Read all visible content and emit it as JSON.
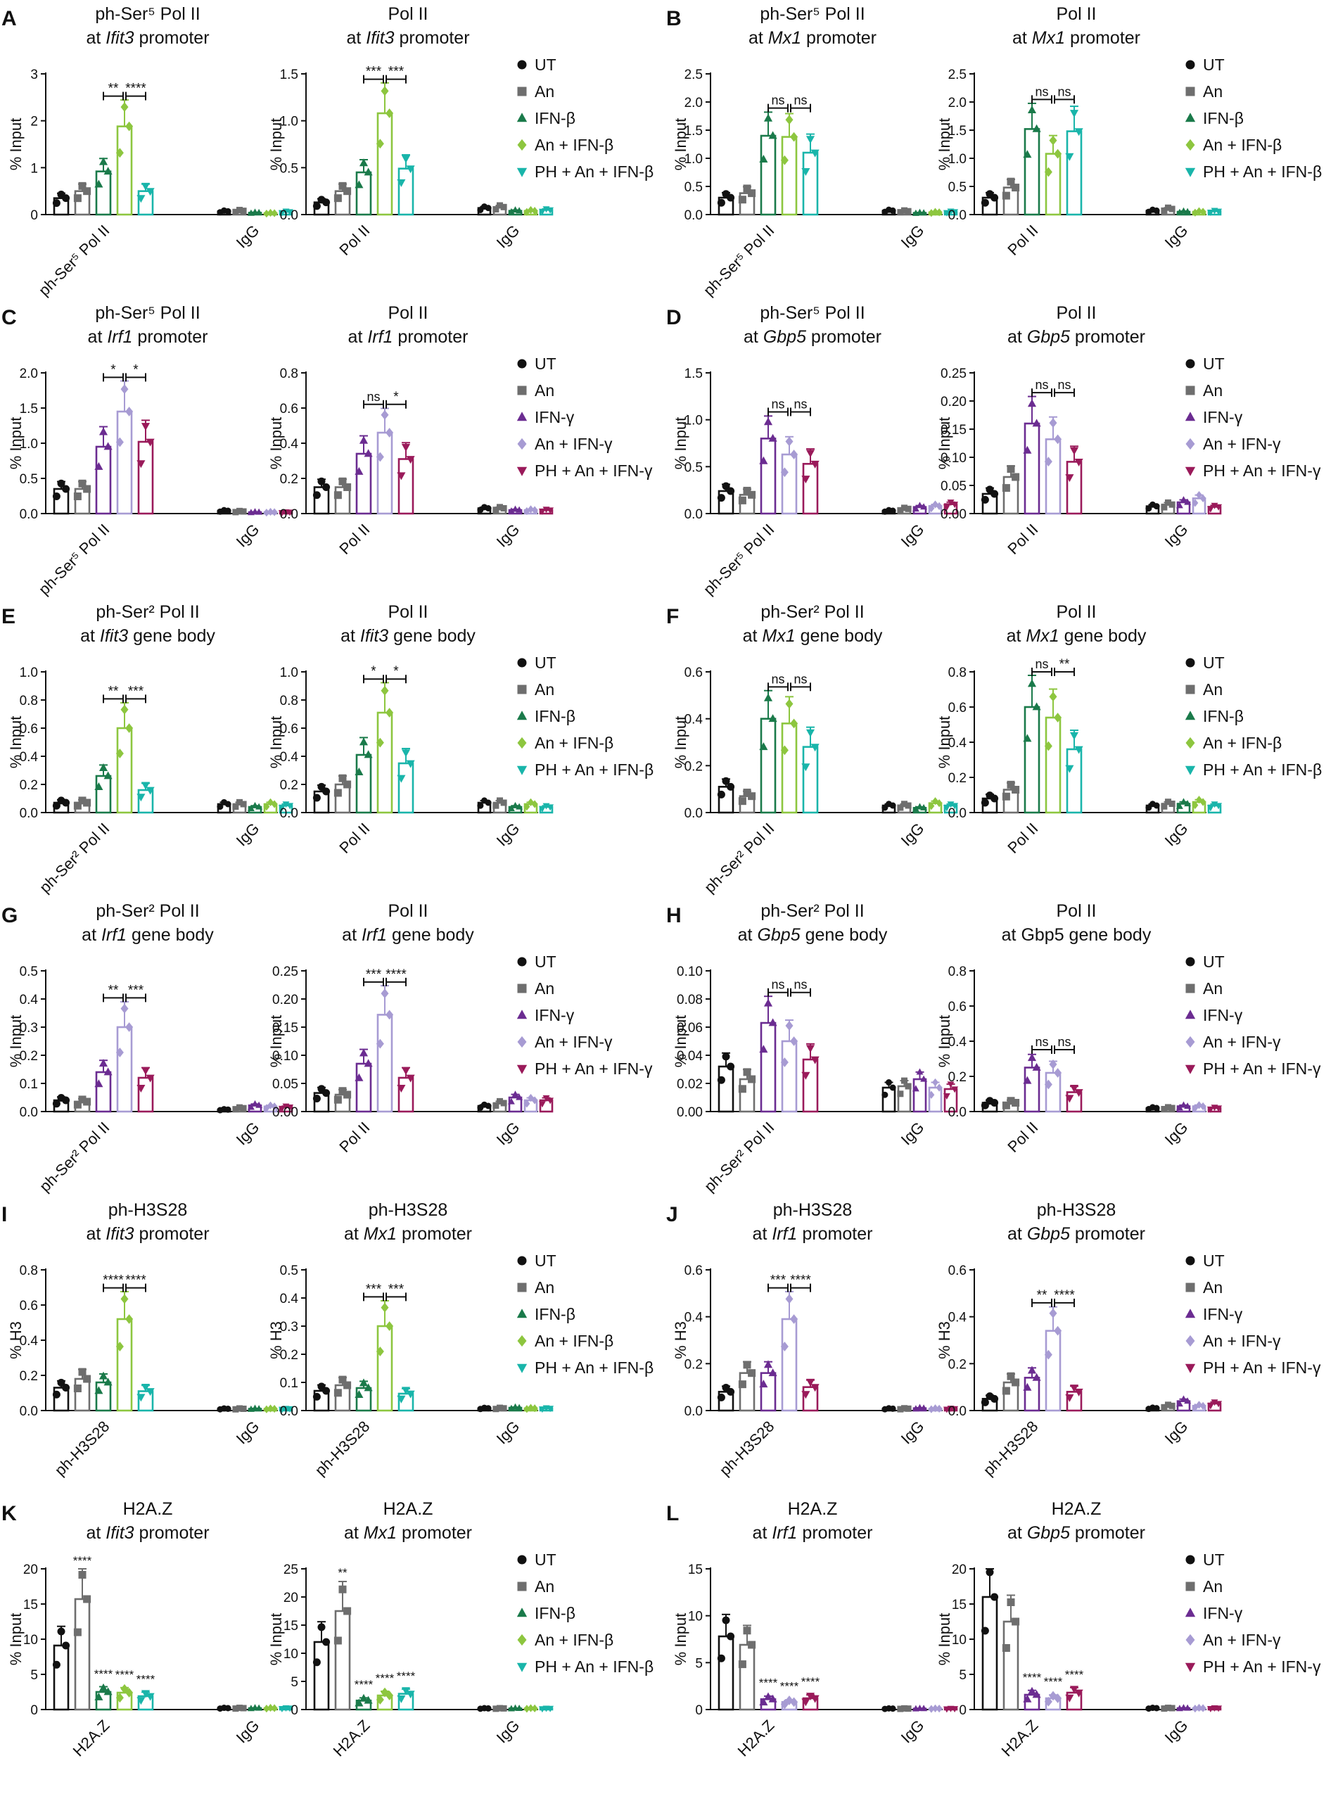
{
  "groups": {
    "beta": [
      "UT",
      "An",
      "IFN-β",
      "An + IFN-β",
      "PH + An + IFN-β"
    ],
    "gamma": [
      "UT",
      "An",
      "IFN-γ",
      "An + IFN-γ",
      "PH + An + IFN-γ"
    ]
  },
  "colors": {
    "beta": [
      "#111111",
      "#6e6e6e",
      "#1a7a4a",
      "#8dc63f",
      "#19b5aa"
    ],
    "gamma": [
      "#111111",
      "#6e6e6e",
      "#6b2c91",
      "#a79bd3",
      "#9a1a5a"
    ]
  },
  "markers": [
    "circle",
    "square",
    "triangle-up",
    "diamond",
    "triangle-down"
  ],
  "chart_data": [
    {
      "id": "A1",
      "panel": "A",
      "type": "bar",
      "title1": "ph-Ser⁵ Pol II",
      "title2a": "at ",
      "title2i": "Ifit3",
      "title2b": " promoter",
      "ylabel": "% Input",
      "ylim": [
        0,
        3
      ],
      "ticks": [
        "0",
        "1",
        "2",
        "3"
      ],
      "categories": [
        "ph-Ser⁵ Pol II",
        "IgG"
      ],
      "set": "beta",
      "values": [
        [
          0.35,
          0.5,
          0.92,
          1.88,
          0.5
        ],
        [
          0.07,
          0.08,
          0.04,
          0.03,
          0.06
        ]
      ],
      "sig": [
        "**",
        "****"
      ]
    },
    {
      "id": "A2",
      "panel": "",
      "type": "bar",
      "title1": "Pol II",
      "title2a": "at ",
      "title2i": "Ifit3",
      "title2b": " promoter",
      "ylabel": "% Input",
      "ylim": [
        0,
        1.5
      ],
      "ticks": [
        "0.0",
        "0.5",
        "1.0",
        "1.5"
      ],
      "categories": [
        "Pol II",
        "IgG"
      ],
      "set": "beta",
      "values": [
        [
          0.13,
          0.25,
          0.45,
          1.08,
          0.49
        ],
        [
          0.07,
          0.08,
          0.04,
          0.04,
          0.05
        ]
      ],
      "sig": [
        "***",
        "***"
      ]
    },
    {
      "id": "B1",
      "panel": "B",
      "type": "bar",
      "title1": "ph-Ser⁵ Pol II",
      "title2a": "at ",
      "title2i": "Mx1",
      "title2b": " promoter",
      "ylabel": "% Input",
      "ylim": [
        0,
        2.5
      ],
      "ticks": [
        "0.0",
        "0.5",
        "1.0",
        "1.5",
        "2.0",
        "2.5"
      ],
      "categories": [
        "ph-Ser⁵ Pol II",
        "IgG"
      ],
      "set": "beta",
      "values": [
        [
          0.3,
          0.38,
          1.4,
          1.38,
          1.1
        ],
        [
          0.07,
          0.06,
          0.03,
          0.04,
          0.05
        ]
      ],
      "sig": [
        "ns",
        "ns"
      ]
    },
    {
      "id": "B2",
      "panel": "",
      "type": "bar",
      "title1": "Pol II",
      "title2a": "at ",
      "title2i": "Mx1",
      "title2b": " promoter",
      "ylabel": "% Input",
      "ylim": [
        0,
        2.5
      ],
      "ticks": [
        "0.0",
        "0.5",
        "1.0",
        "1.5",
        "2.0",
        "2.5"
      ],
      "categories": [
        "Pol II",
        "IgG"
      ],
      "set": "beta",
      "values": [
        [
          0.3,
          0.48,
          1.52,
          1.08,
          1.48
        ],
        [
          0.07,
          0.1,
          0.05,
          0.05,
          0.06
        ]
      ],
      "sig": [
        "ns",
        "ns"
      ]
    },
    {
      "id": "C1",
      "panel": "C",
      "type": "bar",
      "title1": "ph-Ser⁵ Pol II",
      "title2a": "at ",
      "title2i": "Irf1",
      "title2b": " promoter",
      "ylabel": "% Input",
      "ylim": [
        0,
        2
      ],
      "ticks": [
        "0.0",
        "0.5",
        "1.0",
        "1.5",
        "2.0"
      ],
      "categories": [
        "ph-Ser⁵ Pol II",
        "IgG"
      ],
      "set": "gamma",
      "values": [
        [
          0.35,
          0.35,
          0.95,
          1.45,
          1.02
        ],
        [
          0.04,
          0.03,
          0.02,
          0.02,
          0.02
        ]
      ],
      "sig": [
        "*",
        "*"
      ]
    },
    {
      "id": "C2",
      "panel": "",
      "type": "bar",
      "title1": "Pol II",
      "title2a": "at ",
      "title2i": "Irf1",
      "title2b": " promoter",
      "ylabel": "% Input",
      "ylim": [
        0,
        0.8
      ],
      "ticks": [
        "0.0",
        "0.2",
        "0.4",
        "0.6",
        "0.8"
      ],
      "categories": [
        "Pol II",
        "IgG"
      ],
      "set": "gamma",
      "values": [
        [
          0.15,
          0.15,
          0.34,
          0.46,
          0.31
        ],
        [
          0.03,
          0.03,
          0.02,
          0.02,
          0.02
        ]
      ],
      "sig": [
        "ns",
        "*"
      ]
    },
    {
      "id": "D1",
      "panel": "D",
      "type": "bar",
      "title1": "ph-Ser⁵ Pol II",
      "title2a": "at ",
      "title2i": "Gbp5",
      "title2b": " promoter",
      "ylabel": "% Input",
      "ylim": [
        0,
        1.5
      ],
      "ticks": [
        "0.0",
        "0.5",
        "1.0",
        "1.5"
      ],
      "categories": [
        "ph-Ser⁵ Pol II",
        "IgG"
      ],
      "set": "gamma",
      "values": [
        [
          0.24,
          0.2,
          0.8,
          0.63,
          0.53
        ],
        [
          0.03,
          0.05,
          0.07,
          0.08,
          0.1
        ]
      ],
      "sig": [
        "ns",
        "ns"
      ]
    },
    {
      "id": "D2",
      "panel": "",
      "type": "bar",
      "title1": "Pol II",
      "title2a": "at ",
      "title2i": "Gbp5",
      "title2b": " promoter",
      "ylabel": "% Input",
      "ylim": [
        0,
        0.25
      ],
      "ticks": [
        "0.00",
        "0.05",
        "0.10",
        "0.15",
        "0.20",
        "0.25"
      ],
      "categories": [
        "Pol II",
        "IgG"
      ],
      "set": "gamma",
      "values": [
        [
          0.035,
          0.065,
          0.16,
          0.132,
          0.092
        ],
        [
          0.013,
          0.016,
          0.02,
          0.027,
          0.012
        ]
      ],
      "sig": [
        "ns",
        "ns"
      ]
    },
    {
      "id": "E1",
      "panel": "E",
      "type": "bar",
      "title1": "ph-Ser² Pol II",
      "title2a": "at ",
      "title2i": "Ifit3",
      "title2b": " gene body",
      "ylabel": "% Input",
      "ylim": [
        0,
        1
      ],
      "ticks": [
        "0.0",
        "0.2",
        "0.4",
        "0.6",
        "0.8",
        "1.0"
      ],
      "categories": [
        "ph-Ser² Pol II",
        "IgG"
      ],
      "set": "beta",
      "values": [
        [
          0.07,
          0.07,
          0.26,
          0.6,
          0.16
        ],
        [
          0.06,
          0.06,
          0.04,
          0.06,
          0.05
        ]
      ],
      "sig": [
        "**",
        "***"
      ]
    },
    {
      "id": "E2",
      "panel": "",
      "type": "bar",
      "title1": "Pol II",
      "title2a": "at ",
      "title2i": "Ifit3",
      "title2b": " gene body",
      "ylabel": "% Input",
      "ylim": [
        0,
        1
      ],
      "ticks": [
        "0.0",
        "0.2",
        "0.4",
        "0.6",
        "0.8",
        "1.0"
      ],
      "categories": [
        "Pol II",
        "IgG"
      ],
      "set": "beta",
      "values": [
        [
          0.15,
          0.2,
          0.41,
          0.71,
          0.35
        ],
        [
          0.07,
          0.07,
          0.04,
          0.06,
          0.04
        ]
      ],
      "sig": [
        "*",
        "*"
      ]
    },
    {
      "id": "F1",
      "panel": "F",
      "type": "bar",
      "title1": "ph-Ser² Pol II",
      "title2a": "at ",
      "title2i": "Mx1",
      "title2b": " gene body",
      "ylabel": "% Input",
      "ylim": [
        0,
        0.6
      ],
      "ticks": [
        "0.0",
        "0.2",
        "0.4",
        "0.6"
      ],
      "categories": [
        "ph-Ser² Pol II",
        "IgG"
      ],
      "set": "beta",
      "values": [
        [
          0.11,
          0.07,
          0.4,
          0.38,
          0.28
        ],
        [
          0.03,
          0.03,
          0.02,
          0.04,
          0.03
        ]
      ],
      "sig": [
        "ns",
        "ns"
      ]
    },
    {
      "id": "F2",
      "panel": "",
      "type": "bar",
      "title1": "Pol II",
      "title2a": "at ",
      "title2i": "Mx1",
      "title2b": " gene body",
      "ylabel": "% Input",
      "ylim": [
        0,
        0.8
      ],
      "ticks": [
        "0.0",
        "0.2",
        "0.4",
        "0.6",
        "0.8"
      ],
      "categories": [
        "Pol II",
        "IgG"
      ],
      "set": "beta",
      "values": [
        [
          0.08,
          0.13,
          0.6,
          0.54,
          0.36
        ],
        [
          0.04,
          0.05,
          0.05,
          0.06,
          0.04
        ]
      ],
      "sig": [
        "ns",
        "**"
      ]
    },
    {
      "id": "G1",
      "panel": "G",
      "type": "bar",
      "title1": "ph-Ser² Pol II",
      "title2a": "at ",
      "title2i": "Irf1",
      "title2b": " gene body",
      "ylabel": "% Input",
      "ylim": [
        0,
        0.5
      ],
      "ticks": [
        "0.0",
        "0.1",
        "0.2",
        "0.3",
        "0.4",
        "0.5"
      ],
      "categories": [
        "ph-Ser² Pol II",
        "IgG"
      ],
      "set": "gamma",
      "values": [
        [
          0.04,
          0.035,
          0.14,
          0.3,
          0.12
        ],
        [
          0.007,
          0.012,
          0.022,
          0.018,
          0.016
        ]
      ],
      "sig": [
        "**",
        "***"
      ]
    },
    {
      "id": "G2",
      "panel": "",
      "type": "bar",
      "title1": "Pol II",
      "title2a": "at ",
      "title2i": "Irf1",
      "title2b": " gene body",
      "ylabel": "% Input",
      "ylim": [
        0,
        0.25
      ],
      "ticks": [
        "0.00",
        "0.05",
        "0.10",
        "0.15",
        "0.20",
        "0.25"
      ],
      "categories": [
        "Pol II",
        "IgG"
      ],
      "set": "gamma",
      "values": [
        [
          0.033,
          0.03,
          0.085,
          0.172,
          0.06
        ],
        [
          0.01,
          0.015,
          0.025,
          0.02,
          0.02
        ]
      ],
      "sig": [
        "***",
        "****"
      ]
    },
    {
      "id": "H1",
      "panel": "H",
      "type": "bar",
      "title1": "ph-Ser² Pol II",
      "title2a": "at ",
      "title2i": "Gbp5",
      "title2b": " gene body",
      "ylabel": "% Input",
      "ylim": [
        0,
        0.1
      ],
      "ticks": [
        "0.00",
        "0.02",
        "0.04",
        "0.06",
        "0.08",
        "0.10"
      ],
      "categories": [
        "ph-Ser² Pol II",
        "IgG"
      ],
      "set": "gamma",
      "values": [
        [
          0.032,
          0.023,
          0.063,
          0.05,
          0.037
        ],
        [
          0.017,
          0.018,
          0.023,
          0.017,
          0.016
        ]
      ],
      "sig": [
        "ns",
        "ns"
      ]
    },
    {
      "id": "H2",
      "panel": "",
      "type": "bar",
      "title1": "Pol II",
      "title2a": "at Gbp5 gene body",
      "title2i": "",
      "title2b": "",
      "ylabel": "% Input",
      "ylim": [
        0,
        0.8
      ],
      "ticks": [
        "0.0",
        "0.2",
        "0.4",
        "0.6",
        "0.8"
      ],
      "categories": [
        "Pol II",
        "IgG"
      ],
      "set": "gamma",
      "values": [
        [
          0.05,
          0.05,
          0.25,
          0.22,
          0.11
        ],
        [
          0.02,
          0.02,
          0.03,
          0.03,
          0.02
        ]
      ],
      "sig": [
        "ns",
        "ns"
      ]
    },
    {
      "id": "I1",
      "panel": "I",
      "type": "bar",
      "title1": "ph-H3S28",
      "title2a": "at ",
      "title2i": "Ifit3",
      "title2b": " promoter",
      "ylabel": "% H3",
      "ylim": [
        0,
        0.8
      ],
      "ticks": [
        "0.0",
        "0.2",
        "0.4",
        "0.6",
        "0.8"
      ],
      "categories": [
        "ph-H3S28",
        "IgG"
      ],
      "set": "beta",
      "values": [
        [
          0.13,
          0.18,
          0.16,
          0.52,
          0.11
        ],
        [
          0.01,
          0.01,
          0.01,
          0.01,
          0.01
        ]
      ],
      "sig": [
        "****",
        "****"
      ]
    },
    {
      "id": "I2",
      "panel": "",
      "type": "bar",
      "title1": "ph-H3S28",
      "title2a": "at ",
      "title2i": "Mx1",
      "title2b": " promoter",
      "ylabel": "% H3",
      "ylim": [
        0,
        0.5
      ],
      "ticks": [
        "0.0",
        "0.1",
        "0.2",
        "0.3",
        "0.4",
        "0.5"
      ],
      "categories": [
        "ph-H3S28",
        "IgG"
      ],
      "set": "beta",
      "values": [
        [
          0.07,
          0.09,
          0.08,
          0.3,
          0.06
        ],
        [
          0.008,
          0.008,
          0.01,
          0.008,
          0.008
        ]
      ],
      "sig": [
        "***",
        "***"
      ]
    },
    {
      "id": "J1",
      "panel": "J",
      "type": "bar",
      "title1": "ph-H3S28",
      "title2a": "at ",
      "title2i": "Irf1",
      "title2b": " promoter",
      "ylabel": "% H3",
      "ylim": [
        0,
        0.6
      ],
      "ticks": [
        "0.0",
        "0.2",
        "0.4",
        "0.6"
      ],
      "categories": [
        "ph-H3S28",
        "IgG"
      ],
      "set": "gamma",
      "values": [
        [
          0.08,
          0.16,
          0.16,
          0.39,
          0.1
        ],
        [
          0.008,
          0.008,
          0.01,
          0.008,
          0.008
        ]
      ],
      "sig": [
        "***",
        "****"
      ]
    },
    {
      "id": "J2",
      "panel": "",
      "type": "bar",
      "title1": "ph-H3S28",
      "title2a": "at ",
      "title2i": "Gbp5",
      "title2b": " promoter",
      "ylabel": "% H3",
      "ylim": [
        0,
        0.6
      ],
      "ticks": [
        "0.0",
        "0.2",
        "0.4",
        "0.6"
      ],
      "categories": [
        "ph-H3S28",
        "IgG"
      ],
      "set": "gamma",
      "values": [
        [
          0.05,
          0.12,
          0.14,
          0.34,
          0.08
        ],
        [
          0.01,
          0.02,
          0.04,
          0.02,
          0.03
        ]
      ],
      "sig": [
        "**",
        "****"
      ]
    },
    {
      "id": "K1",
      "panel": "K",
      "type": "bar",
      "title1": "H2A.Z",
      "title2a": "at ",
      "title2i": "Ifit3",
      "title2b": " promoter",
      "ylabel": "% Input",
      "ylim": [
        0,
        20
      ],
      "ticks": [
        "0",
        "5",
        "10",
        "15",
        "20"
      ],
      "categories": [
        "H2A.Z",
        "IgG"
      ],
      "set": "beta",
      "values": [
        [
          9.1,
          15.7,
          2.5,
          2.4,
          1.9
        ],
        [
          0.2,
          0.2,
          0.2,
          0.2,
          0.2
        ]
      ],
      "sig": [
        "****",
        "****",
        "****",
        "****"
      ]
    },
    {
      "id": "K2",
      "panel": "",
      "type": "bar",
      "title1": "H2A.Z",
      "title2a": "at ",
      "title2i": "Mx1",
      "title2b": " promoter",
      "ylabel": "% Input",
      "ylim": [
        0,
        25
      ],
      "ticks": [
        "0",
        "5",
        "10",
        "15",
        "20",
        "25"
      ],
      "categories": [
        "H2A.Z",
        "IgG"
      ],
      "set": "beta",
      "values": [
        [
          12,
          17.5,
          1.6,
          2.5,
          2.8
        ],
        [
          0.2,
          0.2,
          0.2,
          0.2,
          0.2
        ]
      ],
      "sig": [
        "**",
        "****",
        "****",
        "****"
      ]
    },
    {
      "id": "L1",
      "panel": "L",
      "type": "bar",
      "title1": "H2A.Z",
      "title2a": "at ",
      "title2i": "Irf1",
      "title2b": " promoter",
      "ylabel": "% Input",
      "ylim": [
        0,
        15
      ],
      "ticks": [
        "0",
        "5",
        "10",
        "15"
      ],
      "categories": [
        "H2A.Z",
        "IgG"
      ],
      "set": "gamma",
      "values": [
        [
          7.8,
          6.9,
          1.1,
          0.8,
          1.2
        ],
        [
          0.1,
          0.1,
          0.1,
          0.1,
          0.1
        ]
      ],
      "sig": [
        "****",
        "****",
        "****"
      ]
    },
    {
      "id": "L2",
      "panel": "",
      "type": "bar",
      "title1": "H2A.Z",
      "title2a": "at ",
      "title2i": "Gbp5",
      "title2b": " promoter",
      "ylabel": "% Input",
      "ylim": [
        0,
        20
      ],
      "ticks": [
        "0",
        "5",
        "10",
        "15",
        "20"
      ],
      "categories": [
        "H2A.Z",
        "IgG"
      ],
      "set": "gamma",
      "values": [
        [
          16,
          12.5,
          2.1,
          1.6,
          2.4
        ],
        [
          0.2,
          0.2,
          0.2,
          0.2,
          0.2
        ]
      ],
      "sig": [
        "****",
        "****",
        "****"
      ]
    }
  ]
}
